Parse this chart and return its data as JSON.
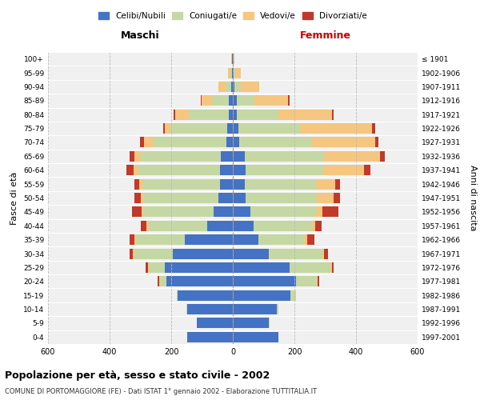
{
  "age_groups": [
    "100+",
    "95-99",
    "90-94",
    "85-89",
    "80-84",
    "75-79",
    "70-74",
    "65-69",
    "60-64",
    "55-59",
    "50-54",
    "45-49",
    "40-44",
    "35-39",
    "30-34",
    "25-29",
    "20-24",
    "15-19",
    "10-14",
    "5-9",
    "0-4"
  ],
  "birth_years": [
    "≤ 1901",
    "1902-1906",
    "1907-1911",
    "1912-1916",
    "1917-1921",
    "1922-1926",
    "1927-1931",
    "1932-1936",
    "1937-1941",
    "1942-1946",
    "1947-1951",
    "1952-1956",
    "1957-1961",
    "1962-1966",
    "1967-1971",
    "1972-1976",
    "1977-1981",
    "1982-1986",
    "1987-1991",
    "1992-1996",
    "1997-2001"
  ],
  "male_celibi": [
    2,
    3,
    5,
    12,
    12,
    18,
    22,
    38,
    42,
    42,
    48,
    62,
    82,
    155,
    195,
    220,
    215,
    178,
    148,
    118,
    148
  ],
  "male_coniugati": [
    0,
    5,
    18,
    55,
    130,
    185,
    235,
    260,
    265,
    250,
    242,
    228,
    192,
    158,
    125,
    52,
    22,
    5,
    2,
    0,
    0
  ],
  "male_vedovi": [
    2,
    8,
    25,
    35,
    45,
    18,
    32,
    22,
    16,
    12,
    10,
    6,
    6,
    6,
    4,
    4,
    3,
    0,
    0,
    0,
    0
  ],
  "male_divorziati": [
    0,
    0,
    0,
    2,
    4,
    6,
    12,
    16,
    22,
    16,
    20,
    32,
    20,
    16,
    10,
    6,
    3,
    0,
    0,
    0,
    0
  ],
  "fem_celibi": [
    2,
    3,
    5,
    12,
    12,
    18,
    22,
    38,
    42,
    38,
    42,
    58,
    68,
    82,
    118,
    185,
    205,
    188,
    142,
    118,
    148
  ],
  "fem_coniugati": [
    0,
    5,
    22,
    58,
    135,
    200,
    235,
    258,
    252,
    232,
    232,
    212,
    188,
    148,
    172,
    132,
    68,
    16,
    5,
    2,
    0
  ],
  "fem_vedovi": [
    4,
    18,
    60,
    110,
    175,
    235,
    205,
    182,
    132,
    62,
    52,
    22,
    12,
    12,
    6,
    4,
    3,
    0,
    0,
    0,
    0
  ],
  "fem_divorziati": [
    0,
    0,
    0,
    4,
    6,
    10,
    12,
    16,
    22,
    16,
    22,
    52,
    20,
    22,
    12,
    6,
    4,
    0,
    0,
    0,
    0
  ],
  "colors": {
    "celibi": "#4472C4",
    "coniugati": "#c5d8a4",
    "vedovi": "#f5c67f",
    "divorziati": "#c0392b"
  },
  "title": "Popolazione per età, sesso e stato civile - 2002",
  "subtitle": "COMUNE DI PORTOMAGGIORE (FE) - Dati ISTAT 1° gennaio 2002 - Elaborazione TUTTITALIA.IT",
  "ylabel_left": "Fasce di età",
  "ylabel_right": "Anni di nascita",
  "xlabel_left": "Maschi",
  "xlabel_right": "Femmine",
  "xlim": 600,
  "legend_labels": [
    "Celibi/Nubili",
    "Coniugati/e",
    "Vedovi/e",
    "Divorziati/e"
  ],
  "bg_color": "#f0f0f0",
  "bar_height": 0.75
}
